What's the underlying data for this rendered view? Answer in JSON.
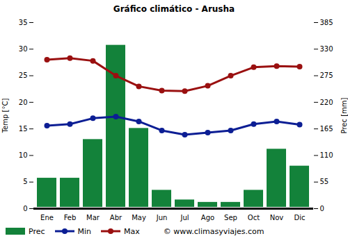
{
  "chart_data": {
    "type": "bar",
    "title": "Gráfico climático - Arusha",
    "source": "© www.climasyviajes.com",
    "ylabel": "Temp [°C]",
    "y2label": "Prec [mm]",
    "categories": [
      "Ene",
      "Feb",
      "Mar",
      "Abr",
      "May",
      "Jun",
      "Jul",
      "Ago",
      "Sep",
      "Oct",
      "Nov",
      "Dic"
    ],
    "series": [
      {
        "name": "Prec",
        "type": "bar",
        "axis": "y2",
        "color": "#13823a",
        "values": [
          66,
          66,
          146,
          341,
          169,
          41,
          21,
          16,
          16,
          41,
          126,
          91
        ]
      },
      {
        "name": "Min",
        "type": "line",
        "marker": "circle",
        "color": "#0c1e94",
        "values": [
          15.6,
          15.9,
          17,
          17.3,
          16.4,
          14.7,
          13.9,
          14.3,
          14.7,
          15.9,
          16.4,
          15.8
        ]
      },
      {
        "name": "Max",
        "type": "line",
        "marker": "circle",
        "color": "#9a1010",
        "values": [
          28,
          28.3,
          27.8,
          25,
          23,
          22.2,
          22.1,
          23.1,
          25,
          26.6,
          26.8,
          26.7
        ]
      }
    ],
    "ylim": [
      0,
      35
    ],
    "yticks": [
      0,
      5,
      10,
      15,
      20,
      25,
      30,
      35
    ],
    "y2lim": [
      0,
      385
    ],
    "y2ticks": [
      0,
      55,
      110,
      165,
      220,
      275,
      330,
      385
    ],
    "grid": false,
    "legend": "bottom"
  }
}
